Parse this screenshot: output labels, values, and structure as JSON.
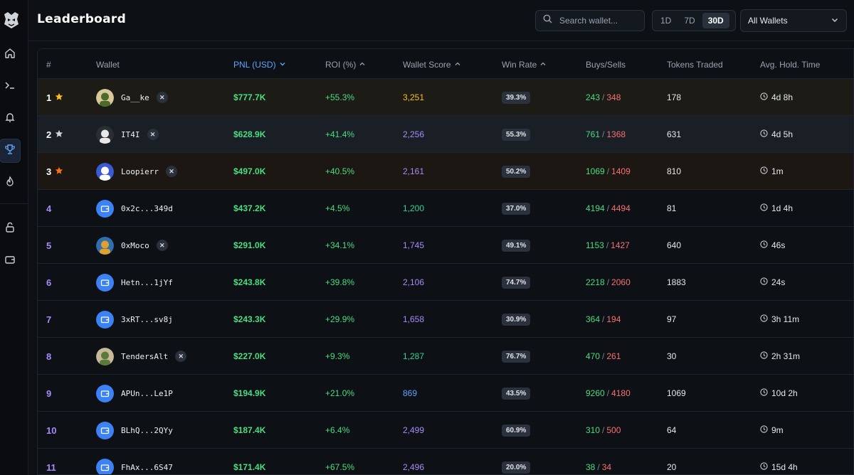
{
  "header": {
    "title": "Leaderboard",
    "search_placeholder": "Search wallet...",
    "periods": [
      "1D",
      "7D",
      "30D"
    ],
    "active_period": "30D",
    "wallet_filter": "All Wallets"
  },
  "sidebar": {
    "items": [
      {
        "name": "home-icon"
      },
      {
        "name": "terminal-icon"
      },
      {
        "name": "bell-icon"
      },
      {
        "name": "trophy-icon",
        "active": true
      },
      {
        "name": "flame-icon"
      },
      {
        "name": "unlock-icon"
      },
      {
        "name": "wallet-icon"
      }
    ]
  },
  "columns": {
    "rank": "#",
    "wallet": "Wallet",
    "pnl": "PNL (USD)",
    "roi": "ROI (%)",
    "score": "Wallet Score",
    "winrate": "Win Rate",
    "buys_sells": "Buys/Sells",
    "tokens": "Tokens Traded",
    "hold": "Avg. Hold. Time"
  },
  "colors": {
    "gold": "#fbbf24",
    "silver": "#d1d5db",
    "bronze": "#f97316",
    "score_orange": "#fbbf24",
    "score_purple": "#a78bfa",
    "score_teal": "#34d399",
    "score_blue": "#60a5fa"
  },
  "rows": [
    {
      "rank": "1",
      "star": "gold",
      "wallet": "Ga__ke",
      "avatar": "pfp",
      "x": true,
      "pnl": "$777.7K",
      "roi": "+55.3%",
      "score": "3,251",
      "score_color": "#fbbf24",
      "winrate": "39.3%",
      "buys": "243",
      "sells": "348",
      "tokens": "178",
      "hold": "4d 8h"
    },
    {
      "rank": "2",
      "star": "silver",
      "wallet": "IT4I",
      "avatar": "pfp",
      "x": true,
      "pnl": "$628.9K",
      "roi": "+41.4%",
      "score": "2,256",
      "score_color": "#a78bfa",
      "winrate": "55.3%",
      "buys": "761",
      "sells": "1368",
      "tokens": "631",
      "hold": "4d 5h"
    },
    {
      "rank": "3",
      "star": "bronze",
      "wallet": "Loopierr",
      "avatar": "pfp",
      "x": true,
      "pnl": "$497.0K",
      "roi": "+40.5%",
      "score": "2,161",
      "score_color": "#a78bfa",
      "winrate": "50.2%",
      "buys": "1069",
      "sells": "1409",
      "tokens": "810",
      "hold": "1m"
    },
    {
      "rank": "4",
      "star": "",
      "wallet": "0x2c...349d",
      "avatar": "wallet",
      "x": false,
      "pnl": "$437.2K",
      "roi": "+4.5%",
      "score": "1,200",
      "score_color": "#34d399",
      "winrate": "37.0%",
      "buys": "4194",
      "sells": "4494",
      "tokens": "81",
      "hold": "1d 4h"
    },
    {
      "rank": "5",
      "star": "",
      "wallet": "0xMoco",
      "avatar": "pfp",
      "x": true,
      "pnl": "$291.0K",
      "roi": "+34.1%",
      "score": "1,745",
      "score_color": "#a78bfa",
      "winrate": "49.1%",
      "buys": "1153",
      "sells": "1427",
      "tokens": "640",
      "hold": "46s"
    },
    {
      "rank": "6",
      "star": "",
      "wallet": "Hetn...1jYf",
      "avatar": "wallet",
      "x": false,
      "pnl": "$243.8K",
      "roi": "+39.8%",
      "score": "2,106",
      "score_color": "#a78bfa",
      "winrate": "74.7%",
      "buys": "2218",
      "sells": "2060",
      "tokens": "1883",
      "hold": "24s"
    },
    {
      "rank": "7",
      "star": "",
      "wallet": "3xRT...sv8j",
      "avatar": "wallet",
      "x": false,
      "pnl": "$243.3K",
      "roi": "+29.9%",
      "score": "1,658",
      "score_color": "#a78bfa",
      "winrate": "30.9%",
      "buys": "364",
      "sells": "194",
      "tokens": "97",
      "hold": "3h 11m"
    },
    {
      "rank": "8",
      "star": "",
      "wallet": "TendersAlt",
      "avatar": "pfp",
      "x": true,
      "pnl": "$227.0K",
      "roi": "+9.3%",
      "score": "1,287",
      "score_color": "#34d399",
      "winrate": "76.7%",
      "buys": "470",
      "sells": "261",
      "tokens": "30",
      "hold": "2h 31m"
    },
    {
      "rank": "9",
      "star": "",
      "wallet": "APUn...Le1P",
      "avatar": "wallet",
      "x": false,
      "pnl": "$194.9K",
      "roi": "+21.0%",
      "score": "869",
      "score_color": "#60a5fa",
      "winrate": "43.5%",
      "buys": "9260",
      "sells": "4180",
      "tokens": "1069",
      "hold": "10d 2h"
    },
    {
      "rank": "10",
      "star": "",
      "wallet": "BLhQ...2QYy",
      "avatar": "wallet",
      "x": false,
      "pnl": "$187.4K",
      "roi": "+6.4%",
      "score": "2,499",
      "score_color": "#a78bfa",
      "winrate": "60.9%",
      "buys": "310",
      "sells": "500",
      "tokens": "64",
      "hold": "9m"
    },
    {
      "rank": "11",
      "star": "",
      "wallet": "FhAx...6S47",
      "avatar": "wallet",
      "x": false,
      "pnl": "$171.4K",
      "roi": "+67.5%",
      "score": "2,496",
      "score_color": "#a78bfa",
      "winrate": "20.0%",
      "buys": "38",
      "sells": "34",
      "tokens": "20",
      "hold": "15d 4h"
    }
  ]
}
